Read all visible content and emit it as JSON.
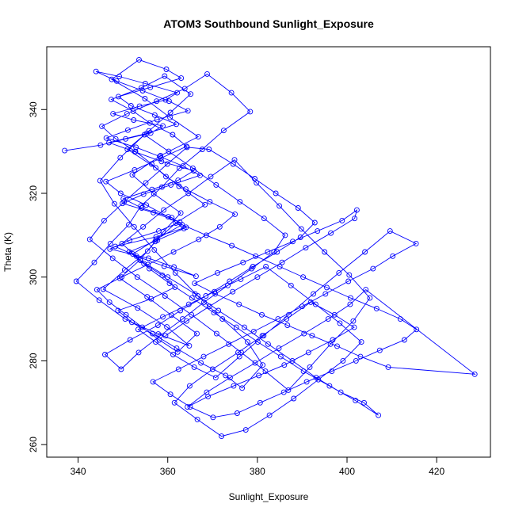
{
  "chart_data": {
    "type": "line",
    "markers": "open-circle",
    "title": "ATOM3 Southbound Sunlight_Exposure",
    "xlabel": "Sunlight_Exposure",
    "ylabel": "Theta (K)",
    "xlim": [
      333,
      432
    ],
    "ylim": [
      257,
      355
    ],
    "x_ticks": [
      340,
      360,
      380,
      400,
      420
    ],
    "y_ticks": [
      260,
      280,
      300,
      320,
      340
    ],
    "grid": false,
    "legend": "none",
    "colors": {
      "series": "#0000ff",
      "axes": "#000000"
    },
    "series": [
      {
        "x": [
          337.0,
          345.0,
          350.6,
          356.2,
          358.9,
          352.4,
          347.8,
          353.7,
          359.5,
          362.1,
          355.0,
          349.2,
          344.0,
          348.6,
          354.4,
          360.3,
          364.5,
          357.6,
          351.1,
          346.3,
          352.9,
          358.2,
          363.4,
          367.2,
          360.7,
          354.6,
          349.9,
          356.8,
          362.7,
          358.0,
          351.5,
          347.1,
          355.7,
          361.4,
          366.3,
          359.2,
          353.0,
          348.3,
          357.4,
          364.1,
          360.9,
          354.2,
          350.1,
          356.5,
          362.3,
          365.8,
          358.6,
          352.7,
          346.9,
          355.3,
          361.9,
          357.1,
          351.8,
          349.0,
          356.1,
          363.0,
          359.7,
          353.6,
          347.5,
          354.9,
          360.5,
          366.8,
          358.4,
          352.1,
          356.9,
          362.9,
          359.0,
          355.5,
          350.4,
          345.6,
          353.3,
          359.8,
          364.8,
          357.9,
          352.0,
          348.9,
          356.3,
          361.6,
          358.8,
          354.7,
          351.4,
          357.7,
          363.6,
          360.1,
          355.2,
          349.5,
          346.2,
          352.6,
          358.5,
          364.2,
          361.1,
          356.0,
          352.3,
          347.4,
          354.1,
          359.3,
          365.1,
          360.6,
          355.8,
          351.0,
          357.3,
          362.5,
          368.3,
          361.8,
          357.2,
          353.8,
          349.3,
          355.4,
          360.8,
          366.5,
          362.2,
          358.1,
          354.3,
          350.7,
          347.0,
          344.2,
          349.7,
          355.6,
          361.3,
          366.9,
          371.6,
          375.0,
          369.4,
          364.0,
          359.6,
          356.4,
          352.8,
          348.4,
          345.3,
          350.9,
          357.5,
          363.8,
          368.8,
          374.2,
          378.4,
          372.5,
          367.7,
          362.6,
          358.7,
          354.0,
          351.3,
          347.2,
          343.6,
          339.6,
          344.7,
          350.5,
          356.6,
          362.0,
          367.4,
          372.9,
          376.6,
          381.2,
          377.8,
          372.2,
          366.7,
          361.7,
          357.0,
          352.5,
          348.1,
          344.9,
          349.4,
          354.8,
          360.2,
          365.6,
          370.8,
          376.1,
          381.5,
          386.2,
          383.7,
          378.7,
          373.4,
          368.1,
          363.3,
          358.3,
          353.5,
          349.6,
          346.0,
          351.6,
          357.8,
          362.8,
          368.5,
          373.8,
          379.0,
          384.4,
          389.6,
          392.8,
          389.1,
          384.1,
          379.4,
          374.6,
          369.2,
          364.3,
          359.9,
          355.1,
          350.3,
          345.8,
          342.6,
          347.7,
          353.2,
          359.4,
          365.3,
          370.9,
          376.4,
          381.8,
          386.9,
          391.7,
          396.3,
          401.4,
          405.1,
          400.5,
          395.0,
          389.8,
          384.9,
          379.8,
          374.9,
          369.6,
          364.6,
          359.1,
          354.5,
          349.8,
          353.9,
          360.0,
          366.1,
          371.3,
          377.1,
          382.4,
          387.8,
          393.1,
          398.6,
          403.8,
          407.0,
          401.9,
          396.1,
          390.3,
          385.2,
          380.1,
          375.3,
          370.3,
          365.4,
          360.4,
          355.9,
          352.2,
          357.4,
          363.2,
          368.6,
          374.3,
          379.6,
          385.0,
          390.2,
          395.5,
          400.8,
          406.6,
          411.9,
          415.5,
          412.8,
          407.3,
          402.0,
          396.6,
          391.0,
          385.9,
          380.6,
          375.5,
          370.1,
          365.0,
          360.6,
          356.7,
          362.4,
          368.0,
          373.6,
          379.2,
          384.6,
          390.0,
          395.2,
          400.3,
          405.8,
          410.2,
          415.4,
          409.6,
          404.0,
          398.2,
          392.5,
          387.0,
          381.4,
          376.0,
          370.7,
          365.9,
          361.2,
          357.3,
          353.4,
          358.9,
          364.7,
          370.4,
          376.3,
          381.9,
          387.5,
          393.0,
          398.4,
          403.2,
          399.1,
          393.6,
          388.1,
          382.7,
          377.4,
          372.0,
          366.6,
          361.5,
          364.9,
          370.0,
          375.7,
          381.1,
          386.5,
          391.9,
          397.2,
          401.6,
          396.8,
          391.4,
          386.0,
          380.3,
          374.7,
          369.0,
          364.4,
          368.7,
          373.9,
          379.5,
          384.8,
          390.4,
          395.8,
          400.7,
          404.2,
          428.5,
          409.2,
          403.0,
          397.8,
          392.2,
          386.7,
          381.0,
          375.9,
          370.6,
          366.0,
          371.1,
          376.8,
          382.3,
          387.9,
          393.4,
          398.9,
          402.2,
          401.7,
          396.4,
          390.8,
          385.5,
          380.0,
          374.5,
          369.3,
          364.2,
          359.5
        ],
        "y": [
          330.2,
          331.5,
          333.0,
          334.4,
          336.1,
          337.5,
          339.0,
          340.8,
          342.3,
          344.0,
          346.2,
          347.9,
          349.1,
          346.8,
          344.5,
          342.0,
          339.7,
          337.6,
          335.1,
          333.2,
          331.0,
          328.8,
          326.5,
          324.3,
          322.0,
          319.8,
          317.6,
          315.4,
          313.1,
          311.0,
          308.8,
          306.7,
          304.5,
          302.4,
          300.2,
          302.6,
          305.0,
          307.3,
          309.6,
          311.9,
          314.2,
          316.5,
          318.7,
          320.9,
          323.1,
          325.4,
          327.6,
          329.9,
          332.1,
          334.3,
          336.5,
          338.7,
          340.9,
          343.1,
          345.3,
          347.5,
          349.6,
          351.9,
          347.2,
          342.6,
          338.1,
          333.5,
          329.0,
          324.4,
          319.9,
          315.3,
          310.8,
          306.2,
          301.7,
          297.1,
          292.6,
          288.1,
          283.6,
          286.4,
          289.2,
          292.0,
          294.8,
          297.6,
          300.4,
          303.2,
          306.0,
          308.8,
          311.6,
          314.4,
          317.2,
          320.0,
          322.8,
          325.6,
          328.4,
          331.2,
          334.0,
          336.8,
          339.6,
          342.4,
          345.2,
          348.0,
          343.7,
          339.3,
          334.9,
          330.5,
          326.1,
          321.7,
          317.3,
          312.9,
          308.5,
          304.1,
          299.7,
          295.3,
          290.9,
          286.5,
          282.1,
          285.0,
          288.0,
          291.0,
          294.0,
          297.0,
          300.0,
          303.0,
          306.0,
          309.0,
          312.0,
          315.0,
          318.0,
          321.0,
          324.0,
          327.0,
          330.0,
          333.0,
          336.0,
          339.0,
          342.0,
          345.0,
          348.5,
          344.0,
          339.5,
          335.0,
          330.5,
          326.0,
          321.5,
          317.0,
          312.5,
          308.0,
          303.5,
          299.0,
          294.5,
          290.0,
          286.5,
          283.0,
          279.5,
          276.5,
          273.5,
          279.0,
          284.5,
          290.0,
          295.5,
          301.0,
          306.5,
          312.0,
          317.5,
          323.0,
          328.5,
          334.0,
          330.0,
          326.0,
          322.0,
          318.0,
          314.0,
          310.0,
          306.0,
          302.0,
          298.0,
          294.0,
          290.0,
          286.0,
          282.0,
          278.0,
          281.5,
          285.0,
          288.5,
          292.0,
          295.5,
          299.0,
          302.5,
          306.0,
          309.5,
          313.0,
          316.5,
          320.0,
          323.5,
          327.0,
          330.5,
          331.0,
          327.0,
          322.5,
          318.0,
          313.5,
          309.0,
          304.5,
          300.0,
          295.5,
          291.0,
          286.5,
          282.0,
          277.5,
          273.0,
          278.5,
          284.0,
          289.5,
          295.0,
          300.5,
          306.0,
          311.5,
          317.0,
          322.5,
          328.0,
          324.0,
          320.0,
          316.0,
          312.0,
          308.0,
          304.0,
          300.0,
          296.0,
          292.0,
          288.0,
          284.0,
          280.0,
          276.0,
          272.5,
          270.0,
          267.0,
          270.5,
          274.0,
          277.5,
          281.0,
          284.5,
          288.0,
          291.5,
          295.0,
          298.5,
          302.0,
          305.5,
          309.0,
          312.5,
          310.0,
          307.5,
          305.0,
          302.5,
          300.0,
          297.5,
          295.0,
          292.5,
          290.0,
          287.5,
          285.0,
          282.5,
          280.0,
          277.5,
          275.0,
          272.5,
          270.0,
          267.5,
          266.5,
          269.0,
          272.0,
          275.0,
          278.0,
          281.0,
          284.0,
          287.0,
          290.0,
          293.0,
          296.0,
          299.0,
          302.0,
          305.0,
          308.0,
          311.0,
          306.0,
          301.0,
          296.0,
          291.0,
          286.0,
          281.0,
          276.0,
          278.5,
          281.5,
          284.5,
          287.5,
          290.5,
          293.5,
          296.5,
          299.5,
          302.5,
          298.0,
          293.5,
          289.0,
          284.5,
          280.0,
          275.5,
          271.0,
          267.0,
          263.5,
          262.0,
          266.0,
          270.0,
          274.0,
          278.0,
          282.0,
          286.0,
          290.0,
          294.0,
          291.0,
          288.0,
          285.0,
          282.0,
          279.0,
          276.5,
          274.0,
          271.5,
          269.0,
          272.5,
          276.0,
          279.5,
          283.0,
          286.5,
          290.0,
          293.5,
          297.0,
          276.8,
          278.5,
          281.0,
          283.5,
          286.0,
          288.5,
          291.0,
          293.5,
          296.0,
          298.5,
          301.0,
          303.5,
          306.0,
          308.5,
          311.0,
          313.5,
          316.0,
          314.0,
          310.5,
          307.0,
          303.5,
          300.0,
          296.5,
          293.0,
          289.5,
          286.0
        ]
      }
    ]
  }
}
